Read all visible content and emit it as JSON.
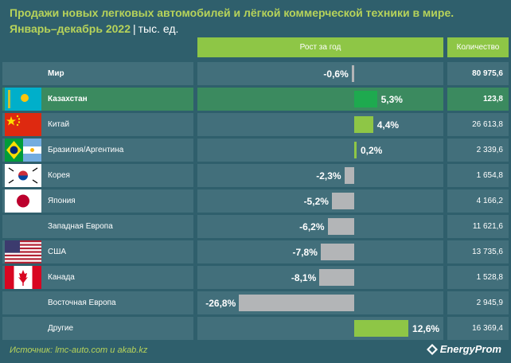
{
  "title": {
    "line1": "Продажи новых легковых автомобилей и лёгкой коммерческой техники в мире.",
    "line2": "Январь–декабрь 2022",
    "separator": "|",
    "unit": "тыс. ед."
  },
  "headers": {
    "growth": "Рост за год",
    "quantity": "Количество"
  },
  "colors": {
    "background": "#2f5f6c",
    "row_background": "#426f7b",
    "highlight_row": "#3b8a5f",
    "positive_bar": "#8ec646",
    "highlight_bar": "#1eaa4f",
    "negative_bar": "#b3b5b7",
    "title_green": "#b7d35a"
  },
  "chart_data": {
    "type": "bar",
    "orientation": "horizontal",
    "title": "Продажи новых легковых автомобилей и лёгкой коммерческой техники в мире. Январь–декабрь 2022",
    "xlabel": "Рост за год",
    "unit": "%",
    "categories": [
      "Мир",
      "Казахстан",
      "Китай",
      "Бразилия/Аргентина",
      "Корея",
      "Япония",
      "Западная Европа",
      "США",
      "Канада",
      "Восточная Европа",
      "Другие"
    ],
    "rows": [
      {
        "country": "Мир",
        "flag": "none",
        "growth": -0.6,
        "growth_label": "-0,6%",
        "quantity": "80 975,6",
        "bold": true
      },
      {
        "country": "Казахстан",
        "flag": "flag-kazakhstan",
        "growth": 5.3,
        "growth_label": "5,3%",
        "quantity": "123,8",
        "bold": true,
        "highlight": true
      },
      {
        "country": "Китай",
        "flag": "flag-china",
        "growth": 4.4,
        "growth_label": "4,4%",
        "quantity": "26 613,8"
      },
      {
        "country": "Бразилия/Аргентина",
        "flag": "flag-brazil-argentina",
        "growth": 0.2,
        "growth_label": "0,2%",
        "quantity": "2 339,6"
      },
      {
        "country": "Корея",
        "flag": "flag-korea",
        "growth": -2.3,
        "growth_label": "-2,3%",
        "quantity": "1 654,8"
      },
      {
        "country": "Япония",
        "flag": "flag-japan",
        "growth": -5.2,
        "growth_label": "-5,2%",
        "quantity": "4 166,2"
      },
      {
        "country": "Западная Европа",
        "flag": "none",
        "growth": -6.2,
        "growth_label": "-6,2%",
        "quantity": "11 621,6"
      },
      {
        "country": "США",
        "flag": "flag-usa",
        "growth": -7.8,
        "growth_label": "-7,8%",
        "quantity": "13 735,6"
      },
      {
        "country": "Канада",
        "flag": "flag-canada",
        "growth": -8.1,
        "growth_label": "-8,1%",
        "quantity": "1 528,8"
      },
      {
        "country": "Восточная Европа",
        "flag": "none",
        "growth": -26.8,
        "growth_label": "-26,8%",
        "quantity": "2 945,9"
      },
      {
        "country": "Другие",
        "flag": "none",
        "growth": 12.6,
        "growth_label": "12,6%",
        "quantity": "16 369,4"
      }
    ]
  },
  "footer": {
    "source": "Источник: lmc-auto.com и akab.kz",
    "brand": "EnergyProm"
  }
}
